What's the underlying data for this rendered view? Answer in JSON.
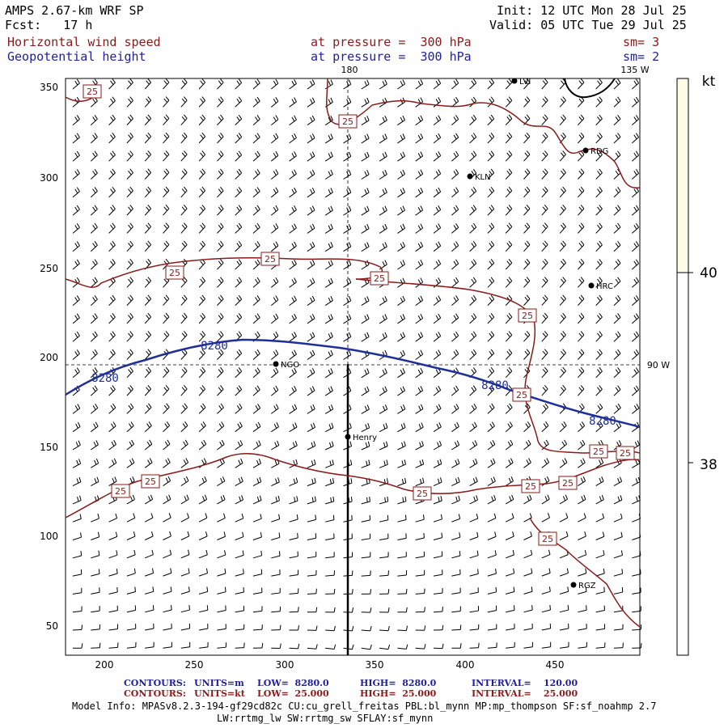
{
  "header": {
    "model": "AMPS 2.67-km WRF SP",
    "fcst": "Fcst:   17 h",
    "init": "Init: 12 UTC Mon 28 Jul 25",
    "valid": "Valid: 05 UTC Tue 29 Jul 25",
    "field1": "Horizontal wind speed",
    "field1_level": "at pressure =  300 hPa",
    "field1_sm": "sm= 3",
    "field2": "Geopotential height",
    "field2_level": "at pressure =  300 hPa",
    "field2_sm": "sm= 2"
  },
  "map": {
    "y_ticks": [
      "350",
      "300",
      "250",
      "200",
      "150",
      "100",
      "50"
    ],
    "x_ticks": [
      "200",
      "250",
      "300",
      "350",
      "400",
      "450"
    ],
    "meridian_labels": {
      "top_180": "180",
      "top_135w": "135 W",
      "right_90w": "90 W"
    },
    "stations": [
      {
        "id": "LVI",
        "label": "LVI"
      },
      {
        "id": "RDG",
        "label": "RDG"
      },
      {
        "id": "KLN",
        "label": "KLN"
      },
      {
        "id": "HRC",
        "label": "HRC"
      },
      {
        "id": "NGO",
        "label": "NGO"
      },
      {
        "id": "Henry",
        "label": "Henry"
      },
      {
        "id": "RGZ",
        "label": "RGZ"
      }
    ],
    "speed_contour_label": "25",
    "height_contour_label": "8280"
  },
  "colorbar": {
    "unit": "kt",
    "labels": [
      "40",
      "38"
    ],
    "colors": {
      "upper": "#fffde8",
      "lower": "#ffffff"
    }
  },
  "footer": {
    "c1_label": "CONTOURS:",
    "c1_units": "UNITS=m",
    "c1_low": "LOW=  8280.0",
    "c1_high": "HIGH=  8280.0",
    "c1_int": "INTERVAL=    120.00",
    "c2_label": "CONTOURS:",
    "c2_units": "UNITS=kt",
    "c2_low": "LOW=  25.000",
    "c2_high": "HIGH=  25.000",
    "c2_int": "INTERVAL=    25.000",
    "model_info_1": "Model Info: MPASv8.2.3-194-gf29cd82c CU:cu_grell_freitas PBL:bl_mynn MP:mp_thompson SF:sf_noahmp 2.7",
    "model_info_2": "LW:rrtmg_lw SW:rrtmg_sw SFLAY:sf_mynn"
  },
  "style": {
    "speed_contour_color": "#8b1a1a",
    "height_contour_color": "#1f2f99",
    "barb_color": "#000000"
  }
}
